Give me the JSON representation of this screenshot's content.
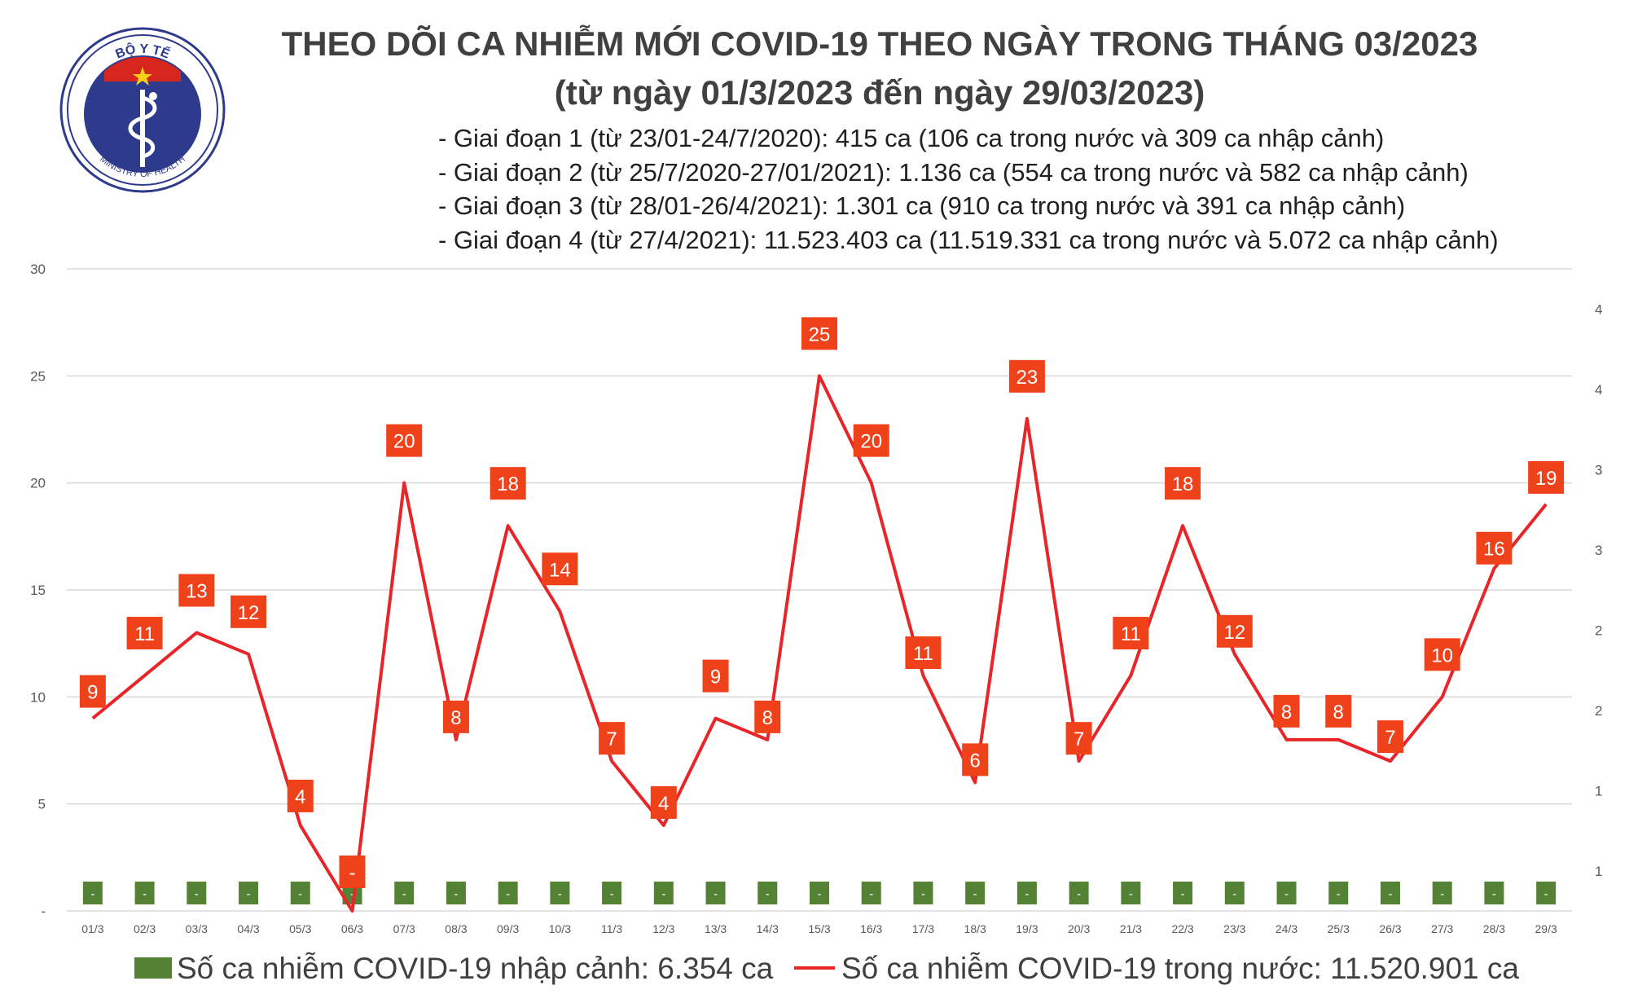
{
  "header": {
    "title": "THEO DÕI CA NHIỄM MỚI COVID-19 THEO NGÀY TRONG THÁNG 03/2023",
    "subtitle": "(từ ngày 01/3/2023 đến ngày 29/03/2023)",
    "stages": [
      "- Giai đoạn 1 (từ 23/01-24/7/2020): 415 ca (106 ca trong nước và 309 ca nhập cảnh)",
      "- Giai đoạn 2 (từ 25/7/2020-27/01/2021): 1.136 ca (554 ca trong nước và 582 ca nhập cảnh)",
      "- Giai đoạn 3 (từ 28/01-26/4/2021): 1.301 ca (910 ca trong nước và 391 ca nhập cảnh)",
      "- Giai đoạn 4 (từ 27/4/2021): 11.523.403 ca (11.519.331 ca trong nước và 5.072 ca nhập cảnh)"
    ]
  },
  "logo": {
    "top_text": "BỘ Y TẾ",
    "bottom_text": "MINISTRY OF HEALTH"
  },
  "legend": {
    "imported": "Số ca nhiễm COVID-19 nhập cảnh: 6.354 ca",
    "domestic": "Số ca nhiễm COVID-19 trong nước: 11.520.901 ca"
  },
  "colors": {
    "line": "#e8262a",
    "bar": "#548235",
    "label_bg": "#f0421a",
    "grid": "#d9d9d9"
  },
  "chart_data": {
    "type": "line",
    "categories": [
      "01/3",
      "02/3",
      "03/3",
      "04/3",
      "05/3",
      "06/3",
      "07/3",
      "08/3",
      "09/3",
      "10/3",
      "11/3",
      "12/3",
      "13/3",
      "14/3",
      "15/3",
      "16/3",
      "17/3",
      "18/3",
      "19/3",
      "20/3",
      "21/3",
      "22/3",
      "23/3",
      "24/3",
      "25/3",
      "26/3",
      "27/3",
      "28/3",
      "29/3"
    ],
    "series": [
      {
        "name": "Số ca nhiễm COVID-19 trong nước: 11.520.901 ca",
        "type": "line",
        "axis": "left",
        "values": [
          9,
          11,
          13,
          12,
          4,
          0,
          20,
          8,
          18,
          14,
          7,
          4,
          9,
          8,
          25,
          20,
          11,
          6,
          23,
          7,
          11,
          18,
          12,
          8,
          8,
          7,
          10,
          16,
          19
        ],
        "labels": [
          "9",
          "11",
          "13",
          "12",
          "4",
          "-",
          "20",
          "8",
          "18",
          "14",
          "7",
          "4",
          "9",
          "8",
          "25",
          "20",
          "11",
          "6",
          "23",
          "7",
          "11",
          "18",
          "12",
          "8",
          "8",
          "7",
          "10",
          "16",
          "19"
        ]
      },
      {
        "name": "Số ca nhiễm COVID-19 nhập cảnh: 6.354 ca",
        "type": "bar",
        "axis": "right",
        "values": [
          0,
          0,
          0,
          0,
          0,
          0,
          0,
          0,
          0,
          0,
          0,
          0,
          0,
          0,
          0,
          0,
          0,
          0,
          0,
          0,
          0,
          0,
          0,
          0,
          0,
          0,
          0,
          0,
          0
        ],
        "labels": [
          "-",
          "-",
          "-",
          "-",
          "-",
          "-",
          "-",
          "-",
          "-",
          "-",
          "-",
          "-",
          "-",
          "-",
          "-",
          "-",
          "-",
          "-",
          "-",
          "-",
          "-",
          "-",
          "-",
          "-",
          "-",
          "-",
          "-",
          "-",
          "-"
        ]
      }
    ],
    "y_left": {
      "ylim": [
        0,
        30
      ],
      "ticks": [
        "-",
        "5",
        "10",
        "15",
        "20",
        "25",
        "30"
      ]
    },
    "y_right": {
      "ylim": [
        0,
        4
      ],
      "ticks": [
        "1",
        "1",
        "2",
        "2",
        "3",
        "3",
        "4",
        "4"
      ]
    },
    "grid": true,
    "legend_position": "bottom"
  }
}
